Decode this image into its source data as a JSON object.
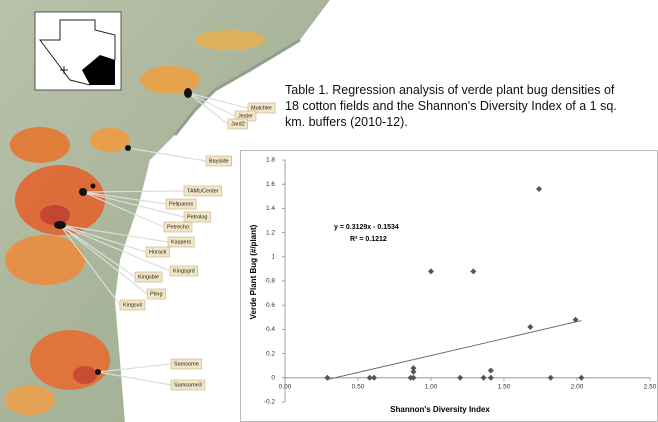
{
  "caption": "Table 1.  Regression analysis of verde plant bug densities of 18 cotton fields and the Shannon's Diversity Index of a 1 sq. km. buffers (2010-12).",
  "map_labels": [
    "Mutchler",
    "Jester",
    "Jard2",
    "Bayside",
    "TAMUCenter",
    "Pelipanos",
    "Petrolog",
    "Petrecho",
    "Kaspers",
    "Horack",
    "Kingsgrd",
    "Kingsbie",
    "Pting",
    "Kingsvil",
    "Samsome",
    "Samsome3"
  ],
  "chart_data": {
    "type": "scatter",
    "x_label": "Shannon's Diversity Index",
    "y_label": "Verde Plant Bug (#/plant)",
    "annotations": [
      "y = 0.3129x - 0.1534",
      "R² = 0.1212"
    ],
    "color": "#555555",
    "trendline": true,
    "x": [
      0.29,
      0.58,
      0.61,
      0.86,
      0.88,
      0.88,
      0.88,
      1.0,
      1.2,
      1.29,
      1.36,
      1.41,
      1.41,
      1.68,
      1.74,
      1.82,
      1.99,
      2.03
    ],
    "values": [
      0,
      0,
      0,
      0,
      0,
      0.05,
      0.08,
      0.88,
      0,
      0.88,
      0,
      0.06,
      0,
      0.42,
      1.56,
      0,
      0.48,
      0
    ],
    "xlim": [
      0,
      2.5
    ],
    "xticks": [
      {
        "value": 0,
        "label": "0.00"
      },
      {
        "value": 0.5,
        "label": "0.50"
      },
      {
        "value": 1,
        "label": "1.00"
      },
      {
        "value": 1.5,
        "label": "1.50"
      },
      {
        "value": 2,
        "label": "2.00"
      },
      {
        "value": 2.5,
        "label": "2.50"
      }
    ],
    "ylim": [
      -0.2,
      1.8
    ],
    "yticks": [
      -0.2,
      0,
      0.2,
      0.4,
      0.6,
      0.8,
      1,
      1.2,
      1.4,
      1.6,
      1.8
    ]
  }
}
